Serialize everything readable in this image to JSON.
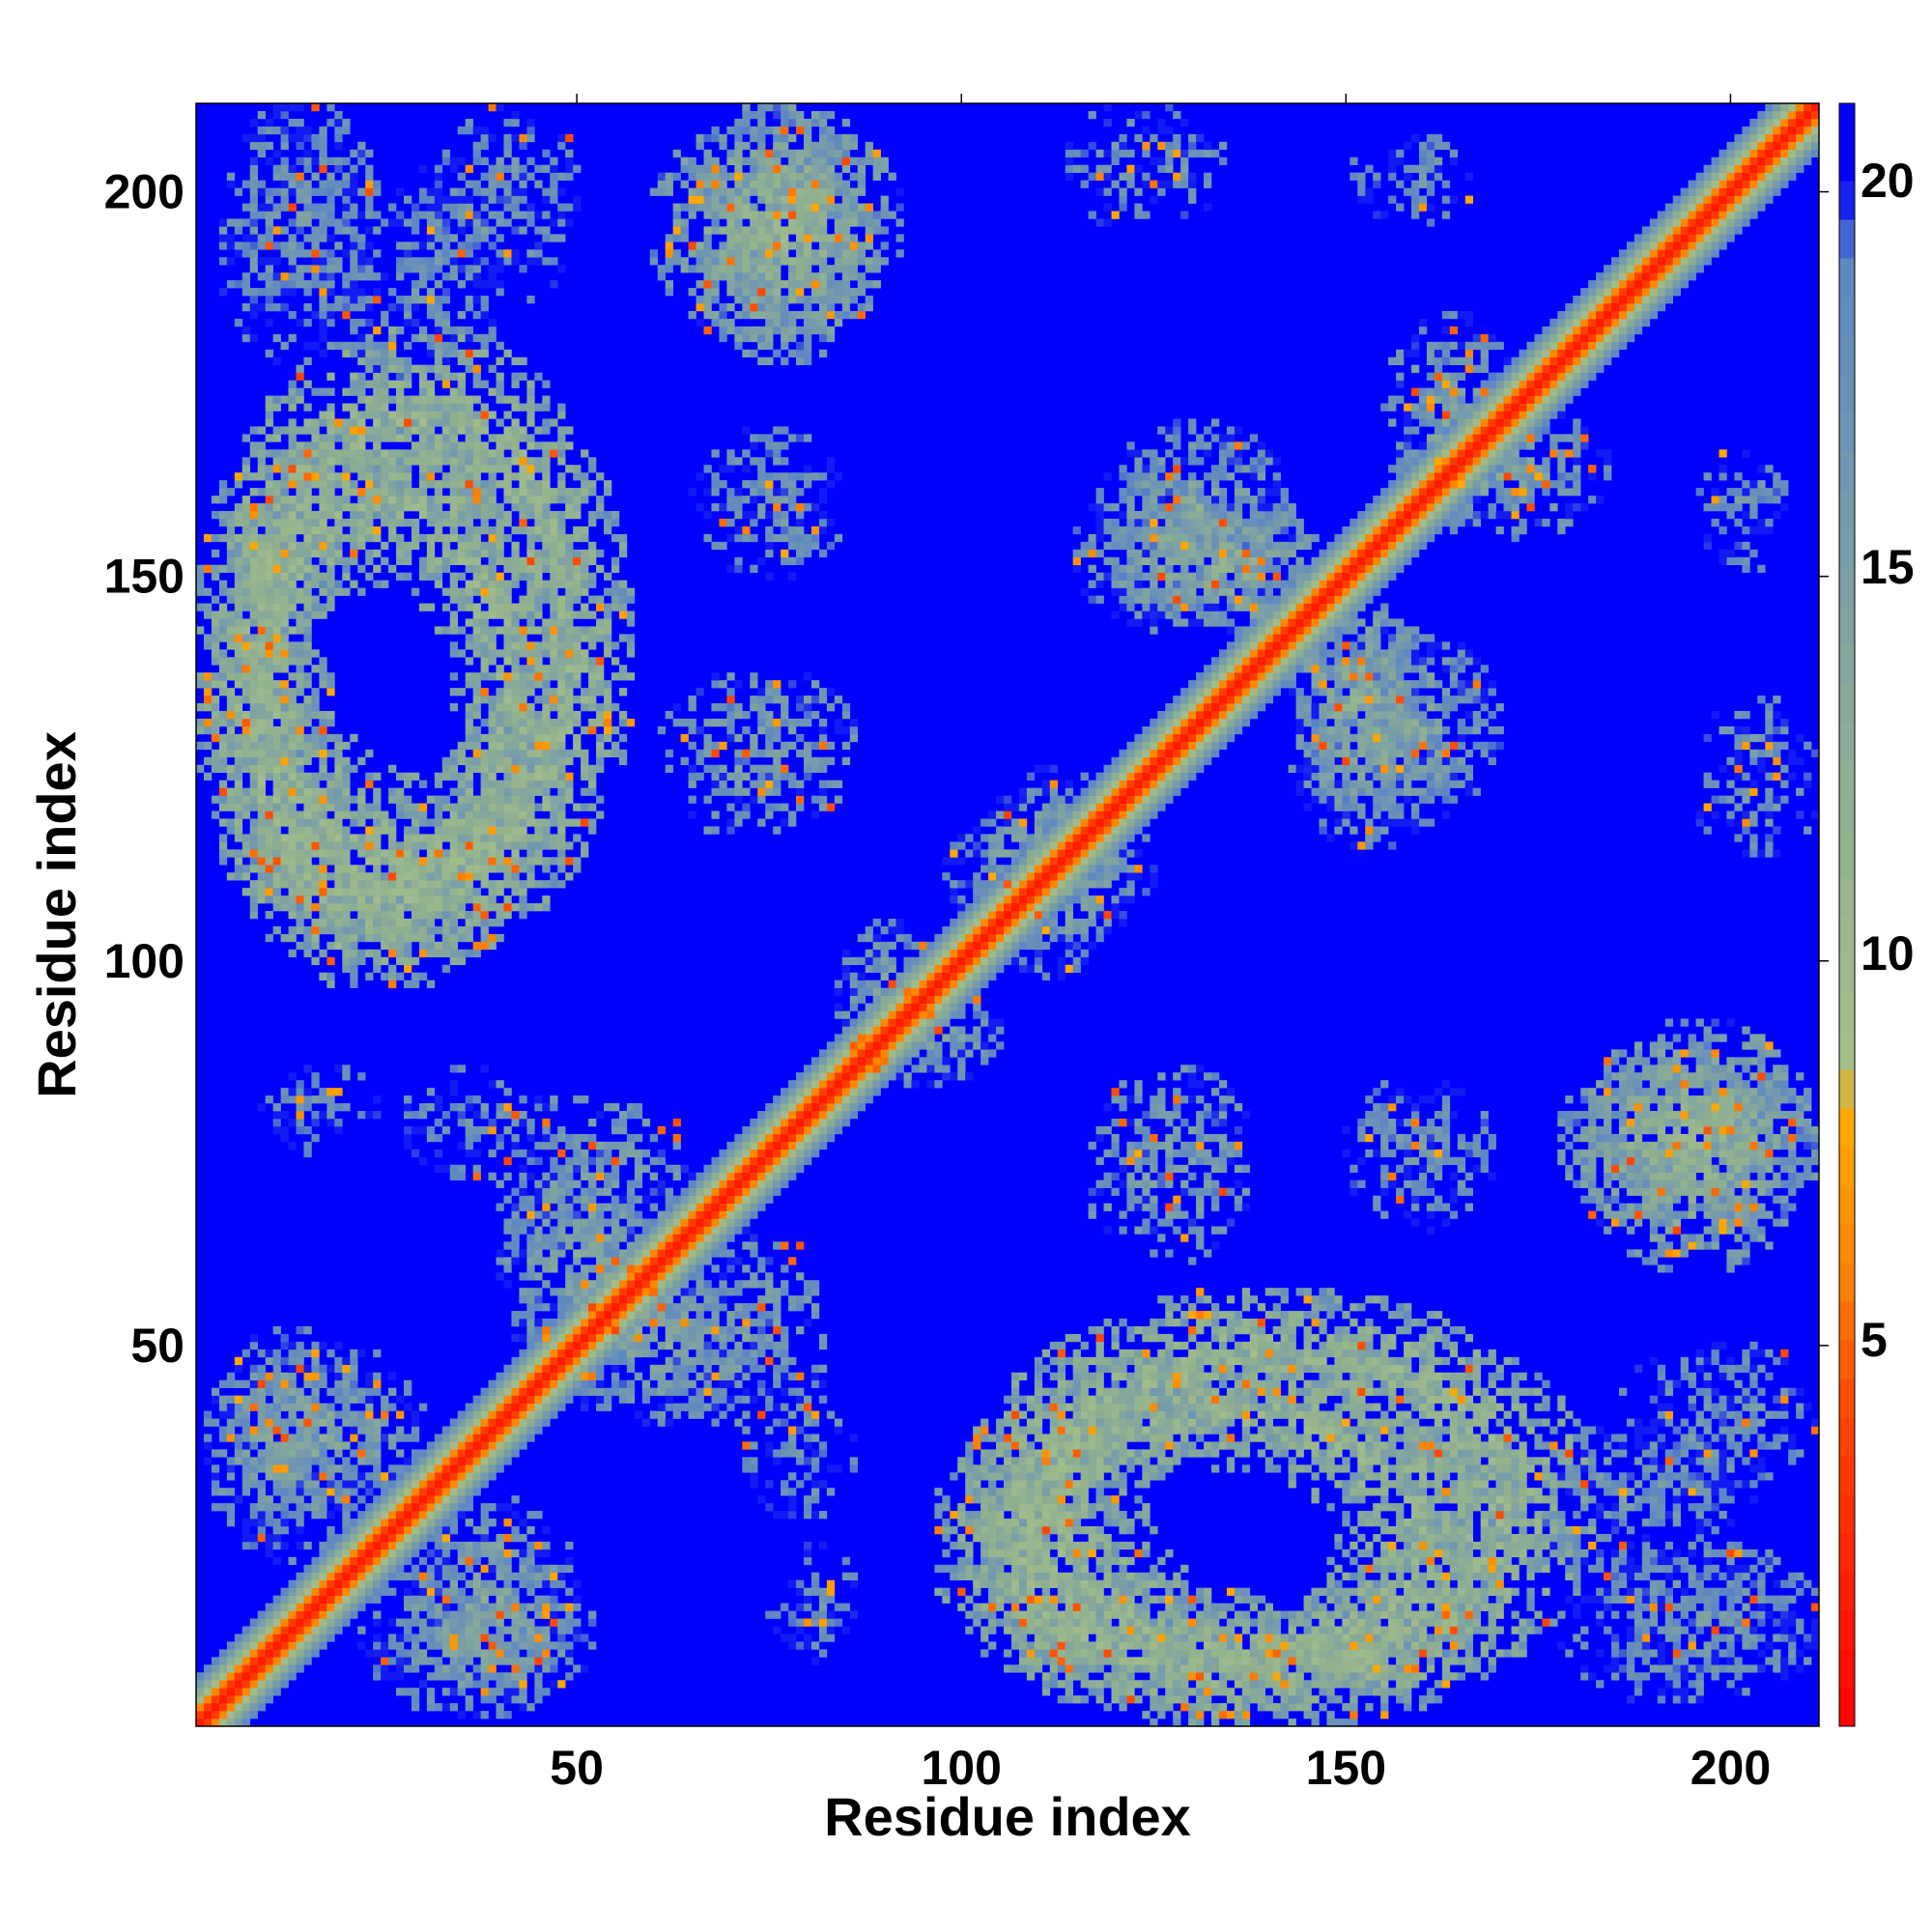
{
  "chart_data": {
    "type": "heatmap",
    "title": "",
    "xlabel": "Residue index",
    "ylabel": "Residue index",
    "n_residues": 211,
    "xlim": [
      1,
      211
    ],
    "ylim": [
      1,
      211
    ],
    "x_ticks": [
      50,
      100,
      150,
      200
    ],
    "y_ticks": [
      50,
      100,
      150,
      200
    ],
    "colorbar": {
      "range": [
        0,
        21
      ],
      "ticks": [
        5,
        10,
        15,
        20
      ],
      "stops": [
        {
          "value": 0,
          "color": "#ff0000"
        },
        {
          "value": 4,
          "color": "#ff4400"
        },
        {
          "value": 6,
          "color": "#ff8800"
        },
        {
          "value": 8,
          "color": "#ffaa00"
        },
        {
          "value": 8.5,
          "color": "#a6bf8a"
        },
        {
          "value": 12,
          "color": "#90b090"
        },
        {
          "value": 15,
          "color": "#7a9ea8"
        },
        {
          "value": 19,
          "color": "#5c86c4"
        },
        {
          "value": 20,
          "color": "#0000ff"
        }
      ]
    },
    "background_value": 21,
    "diagonal": {
      "band_halfwidth": 6
    },
    "contact_regions": [
      {
        "x": [
          1,
          48
        ],
        "y": [
          97,
          170
        ],
        "shape": "ring",
        "value": 12
      },
      {
        "x": [
          100,
          182
        ],
        "y": [
          1,
          57
        ],
        "shape": "ring",
        "value": 12
      },
      {
        "x": [
          60,
          92
        ],
        "y": [
          180,
          211
        ],
        "shape": "blob",
        "value": 12
      },
      {
        "x": [
          178,
          211
        ],
        "y": [
          65,
          89
        ],
        "shape": "blob",
        "value": 12
      },
      {
        "x": [
          4,
          24
        ],
        "y": [
          178,
          211
        ],
        "shape": "sparse",
        "value": 17
      },
      {
        "x": [
          28,
          50
        ],
        "y": [
          186,
          206
        ],
        "shape": "sparse",
        "value": 17
      },
      {
        "x": [
          65,
          84
        ],
        "y": [
          154,
          169
        ],
        "shape": "sparse",
        "value": 17
      },
      {
        "x": [
          61,
          82
        ],
        "y": [
          117,
          137
        ],
        "shape": "sparse",
        "value": 16
      },
      {
        "x": [
          114,
          127
        ],
        "y": [
          196,
          211
        ],
        "shape": "sparse",
        "value": 17
      },
      {
        "x": [
          150,
          163
        ],
        "y": [
          197,
          206
        ],
        "shape": "sparse",
        "value": 18
      },
      {
        "x": [
          115,
          139
        ],
        "y": [
          143,
          163
        ],
        "shape": "blob",
        "value": 14
      },
      {
        "x": [
          145,
          170
        ],
        "y": [
          118,
          143
        ],
        "shape": "blob",
        "value": 14
      },
      {
        "x": [
          124,
          147
        ],
        "y": [
          143,
          160
        ],
        "shape": "blob",
        "value": 13
      },
      {
        "x": [
          98,
          125
        ],
        "y": [
          103,
          121
        ],
        "shape": "blob",
        "value": 14
      },
      {
        "x": [
          155,
          172
        ],
        "y": [
          158,
          184
        ],
        "shape": "blob",
        "value": 14
      },
      {
        "x": [
          118,
          137
        ],
        "y": [
          67,
          86
        ],
        "shape": "sparse",
        "value": 16
      },
      {
        "x": [
          150,
          165
        ],
        "y": [
          67,
          84
        ],
        "shape": "sparse",
        "value": 17
      },
      {
        "x": [
          8,
          25
        ],
        "y": [
          78,
          86
        ],
        "shape": "sparse",
        "value": 18
      },
      {
        "x": [
          28,
          46
        ],
        "y": [
          72,
          86
        ],
        "shape": "sparse",
        "value": 17
      },
      {
        "x": [
          40,
          62
        ],
        "y": [
          46,
          74
        ],
        "shape": "blob",
        "value": 14
      },
      {
        "x": [
          62,
          82
        ],
        "y": [
          40,
          65
        ],
        "shape": "sparse",
        "value": 16
      },
      {
        "x": [
          2,
          22
        ],
        "y": [
          22,
          52
        ],
        "shape": "blob",
        "value": 14
      },
      {
        "x": [
          28,
          50
        ],
        "y": [
          5,
          30
        ],
        "shape": "blob",
        "value": 14
      },
      {
        "x": [
          75,
          85
        ],
        "y": [
          11,
          19
        ],
        "shape": "sparse",
        "value": 18
      },
      {
        "x": [
          183,
          211
        ],
        "y": [
          5,
          24
        ],
        "shape": "sparse",
        "value": 17
      },
      {
        "x": [
          195,
          211
        ],
        "y": [
          34,
          50
        ],
        "shape": "sparse",
        "value": 17
      },
      {
        "x": [
          196,
          211
        ],
        "y": [
          124,
          134
        ],
        "shape": "sparse",
        "value": 17
      },
      {
        "x": [
          196,
          207
        ],
        "y": [
          156,
          166
        ],
        "shape": "sparse",
        "value": 17
      },
      {
        "x": [
          86,
          105
        ],
        "y": [
          84,
          97
        ],
        "shape": "blob",
        "value": 14
      },
      {
        "x": [
          175,
          200
        ],
        "y": [
          20,
          40
        ],
        "shape": "sparse",
        "value": 17
      }
    ]
  }
}
